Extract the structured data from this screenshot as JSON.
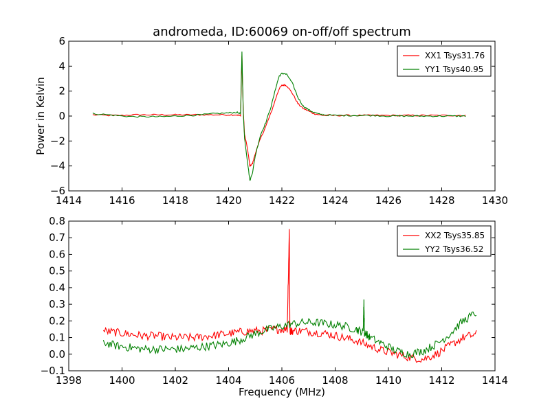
{
  "chart_data": [
    {
      "type": "line",
      "title": "andromeda, ID:60069 on-off/off spectrum",
      "xlabel": "",
      "ylabel": "Power in Kelvin",
      "xlim": [
        1414,
        1430
      ],
      "ylim": [
        -6,
        6
      ],
      "xticks": [
        1414,
        1416,
        1418,
        1420,
        1422,
        1424,
        1426,
        1428,
        1430
      ],
      "yticks": [
        -6,
        -4,
        -2,
        0,
        2,
        4,
        6
      ],
      "grid": false,
      "legend_position": "top-right",
      "series": [
        {
          "name": "XX1 Tsys31.76",
          "color": "#ff0000",
          "x": [
            1414.9,
            1415.5,
            1416,
            1416.5,
            1417,
            1417.5,
            1418,
            1418.5,
            1419,
            1419.5,
            1420,
            1420.3,
            1420.45,
            1420.5,
            1420.55,
            1420.6,
            1420.7,
            1420.8,
            1420.9,
            1421.0,
            1421.2,
            1421.4,
            1421.6,
            1421.8,
            1421.9,
            1422.0,
            1422.1,
            1422.2,
            1422.4,
            1422.6,
            1422.8,
            1423.0,
            1423.2,
            1423.4,
            1423.6,
            1424,
            1424.5,
            1425,
            1425.5,
            1426,
            1426.5,
            1427,
            1427.5,
            1428,
            1428.5,
            1428.9
          ],
          "y": [
            0.1,
            0.05,
            0.05,
            0.1,
            0.1,
            0.1,
            0.1,
            0.1,
            0.1,
            0.1,
            0.1,
            0.1,
            0.0,
            4.8,
            0.5,
            -1.5,
            -2.5,
            -4.0,
            -3.8,
            -3.0,
            -1.8,
            -0.8,
            0.3,
            1.6,
            2.2,
            2.45,
            2.5,
            2.4,
            1.8,
            1.0,
            0.6,
            0.4,
            0.2,
            0.1,
            0.05,
            0.05,
            0.05,
            0.05,
            0.05,
            0.05,
            0.05,
            0.05,
            0.05,
            0.05,
            0.05,
            0.05
          ]
        },
        {
          "name": "YY1 Tsys40.95",
          "color": "#008000",
          "x": [
            1414.9,
            1415.5,
            1416,
            1416.5,
            1417,
            1417.5,
            1418,
            1418.5,
            1419,
            1419.5,
            1420,
            1420.3,
            1420.45,
            1420.5,
            1420.55,
            1420.6,
            1420.7,
            1420.8,
            1420.9,
            1421.0,
            1421.2,
            1421.4,
            1421.6,
            1421.8,
            1421.9,
            1422.0,
            1422.1,
            1422.2,
            1422.4,
            1422.6,
            1422.8,
            1423.0,
            1423.2,
            1423.4,
            1423.6,
            1424,
            1424.5,
            1425,
            1425.5,
            1426,
            1426.5,
            1427,
            1427.5,
            1428,
            1428.5,
            1428.9
          ],
          "y": [
            0.2,
            0.1,
            0.0,
            -0.05,
            -0.05,
            -0.05,
            0.0,
            0.05,
            0.1,
            0.2,
            0.25,
            0.3,
            0.2,
            5.2,
            0.3,
            -1.8,
            -3.5,
            -5.2,
            -4.5,
            -3.2,
            -1.5,
            -0.5,
            0.8,
            2.5,
            3.2,
            3.4,
            3.4,
            3.3,
            2.6,
            1.5,
            0.8,
            0.5,
            0.3,
            0.15,
            0.1,
            0.05,
            0.05,
            0.05,
            0.05,
            0.0,
            0.0,
            0.0,
            0.0,
            0.0,
            0.0,
            0.0
          ]
        }
      ]
    },
    {
      "type": "line",
      "title": "",
      "xlabel": "Frequency (MHz)",
      "ylabel": "",
      "xlim": [
        1398,
        1414
      ],
      "ylim": [
        -0.1,
        0.8
      ],
      "xticks": [
        1398,
        1400,
        1402,
        1404,
        1406,
        1408,
        1410,
        1412,
        1414
      ],
      "yticks": [
        -0.1,
        0.0,
        0.1,
        0.2,
        0.3,
        0.4,
        0.5,
        0.6,
        0.7,
        0.8
      ],
      "grid": false,
      "legend_position": "top-right",
      "series": [
        {
          "name": "XX2 Tsys35.85",
          "color": "#ff0000",
          "x": [
            1399.3,
            1399.8,
            1400.3,
            1400.8,
            1401.3,
            1401.8,
            1402.3,
            1402.8,
            1403.3,
            1403.8,
            1404.3,
            1404.8,
            1405.3,
            1405.8,
            1406.2,
            1406.28,
            1406.3,
            1406.32,
            1406.4,
            1406.8,
            1407.3,
            1407.8,
            1408.3,
            1408.8,
            1409.3,
            1409.8,
            1410.3,
            1410.8,
            1411.3,
            1411.8,
            1412.3,
            1412.8,
            1413.3
          ],
          "y": [
            0.14,
            0.13,
            0.12,
            0.11,
            0.11,
            0.1,
            0.1,
            0.1,
            0.11,
            0.12,
            0.13,
            0.14,
            0.14,
            0.15,
            0.15,
            0.75,
            0.15,
            0.14,
            0.14,
            0.14,
            0.13,
            0.12,
            0.1,
            0.08,
            0.05,
            0.02,
            0.0,
            -0.02,
            -0.03,
            0.0,
            0.05,
            0.1,
            0.12
          ]
        },
        {
          "name": "YY2 Tsys36.52",
          "color": "#008000",
          "x": [
            1399.3,
            1399.8,
            1400.3,
            1400.8,
            1401.3,
            1401.8,
            1402.3,
            1402.8,
            1403.3,
            1403.8,
            1404.3,
            1404.8,
            1405.3,
            1405.8,
            1406.3,
            1406.8,
            1407.3,
            1407.8,
            1408.3,
            1408.8,
            1409.05,
            1409.08,
            1409.1,
            1409.3,
            1409.8,
            1410.3,
            1410.8,
            1411.3,
            1411.8,
            1412.3,
            1412.8,
            1413.3
          ],
          "y": [
            0.07,
            0.05,
            0.04,
            0.03,
            0.03,
            0.03,
            0.03,
            0.04,
            0.05,
            0.06,
            0.08,
            0.11,
            0.14,
            0.16,
            0.18,
            0.19,
            0.19,
            0.18,
            0.17,
            0.15,
            0.13,
            0.33,
            0.13,
            0.1,
            0.06,
            0.02,
            0.0,
            0.02,
            0.06,
            0.12,
            0.2,
            0.25
          ]
        }
      ]
    }
  ]
}
